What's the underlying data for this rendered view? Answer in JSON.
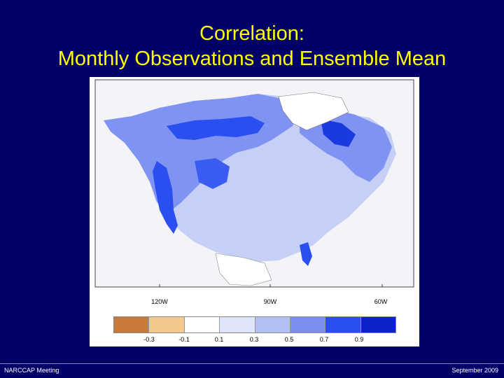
{
  "slide": {
    "title_line1": "Correlation:",
    "title_line2": "Monthly Observations and Ensemble Mean"
  },
  "map": {
    "lon_ticks": [
      "120W",
      "90W",
      "60W"
    ],
    "colorbar": {
      "colors": [
        "#c87a3a",
        "#f2c88c",
        "#ffffff",
        "#e0e6fa",
        "#b4c0f4",
        "#7a8ef0",
        "#2a4ef0",
        "#0a22c8"
      ],
      "labels": [
        "-0.3",
        "-0.1",
        "0.1",
        "0.3",
        "0.5",
        "0.7",
        "0.9"
      ]
    }
  },
  "footer": {
    "left": "NARCCAP Meeting",
    "right": "September 2009"
  }
}
